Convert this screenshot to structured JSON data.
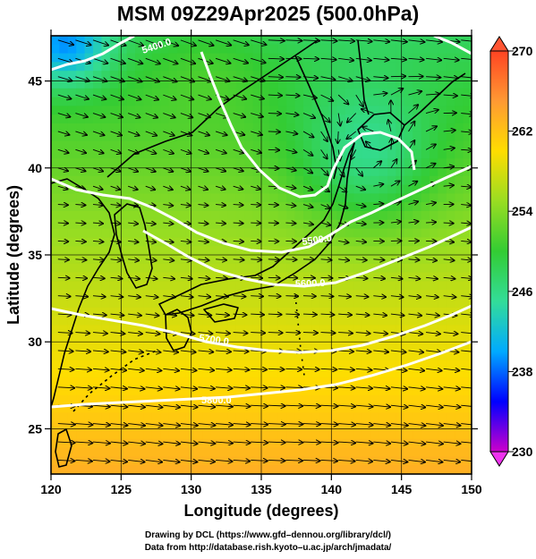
{
  "title": "MSM 09Z29Apr2025 (500.0hPa)",
  "map": {
    "xlabel": "Longitude (degrees)",
    "ylabel": "Latitude  (degrees)",
    "lon_range": [
      120,
      150
    ],
    "lat_range": [
      22.4,
      47.6
    ],
    "lon_ticks": [
      "120",
      "125",
      "130",
      "135",
      "140",
      "145",
      "150"
    ],
    "lat_ticks": [
      "25",
      "30",
      "35",
      "40",
      "45"
    ],
    "colorbar": {
      "min": 230,
      "max": 270,
      "tick_labels": [
        "270",
        "262",
        "254",
        "246",
        "238",
        "230"
      ],
      "colors": [
        "#cc00cc",
        "#0000ff",
        "#00aaff",
        "#33dd99",
        "#33cc33",
        "#99dd22",
        "#ffdd00",
        "#ff9933",
        "#ff4422"
      ]
    },
    "contours": [
      {
        "label": "5400.0",
        "color": "#ffffff"
      },
      {
        "label": "5500.0",
        "color": "#ffffff"
      },
      {
        "label": "5600.0",
        "color": "#ffffff"
      },
      {
        "label": "5700.0",
        "color": "#ffffff"
      },
      {
        "label": "5800.0",
        "color": "#ffffff"
      }
    ]
  },
  "credits": {
    "line1": "Drawing by DCL (https://www.gfd–dennou.org/library/dcl/)",
    "line2": "Data from http://database.rish.kyoto–u.ac.jp/arch/jmadata/"
  }
}
